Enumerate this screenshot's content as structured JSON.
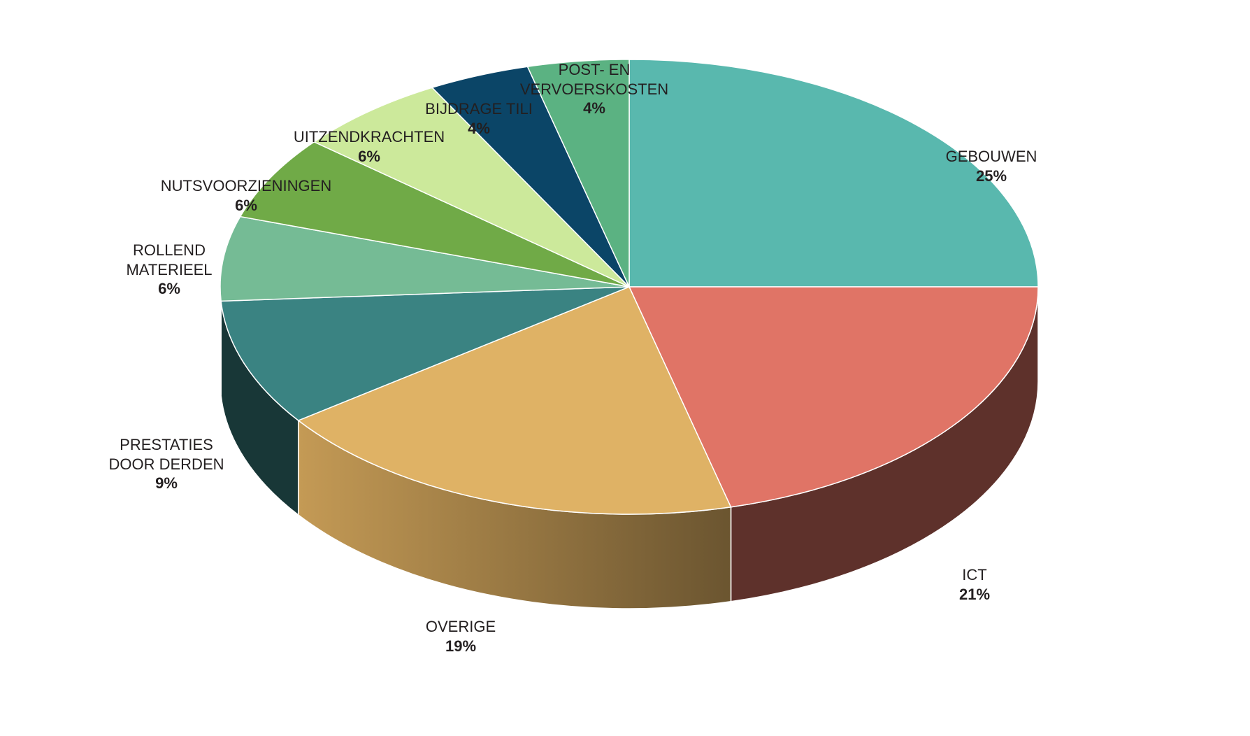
{
  "chart_data": {
    "type": "pie",
    "style": "3d",
    "slices": [
      {
        "label": "GEBOUWEN",
        "percent_label": "25%",
        "value": 25,
        "color": "#59b8ae"
      },
      {
        "label": "ICT",
        "percent_label": "21%",
        "value": 21,
        "color": "#e07466"
      },
      {
        "label": "OVERIGE",
        "percent_label": "19%",
        "value": 19,
        "color": "#dfb265"
      },
      {
        "label": "PRESTATIES\nDOOR DERDEN",
        "percent_label": "9%",
        "value": 9,
        "color": "#3a8382"
      },
      {
        "label": "ROLLEND\nMATERIEEL",
        "percent_label": "6%",
        "value": 6,
        "color": "#75bb95"
      },
      {
        "label": "NUTSVOORZIENINGEN",
        "percent_label": "6%",
        "value": 6,
        "color": "#70aa47"
      },
      {
        "label": "UITZENDKRACHTEN",
        "percent_label": "6%",
        "value": 6,
        "color": "#cce99b"
      },
      {
        "label": "BIJDRAGE TILI",
        "percent_label": "4%",
        "value": 4,
        "color": "#0b4567"
      },
      {
        "label": "POST- EN\nVERVOERSKOSTEN",
        "percent_label": "4%",
        "value": 4,
        "color": "#5bb282"
      }
    ]
  }
}
